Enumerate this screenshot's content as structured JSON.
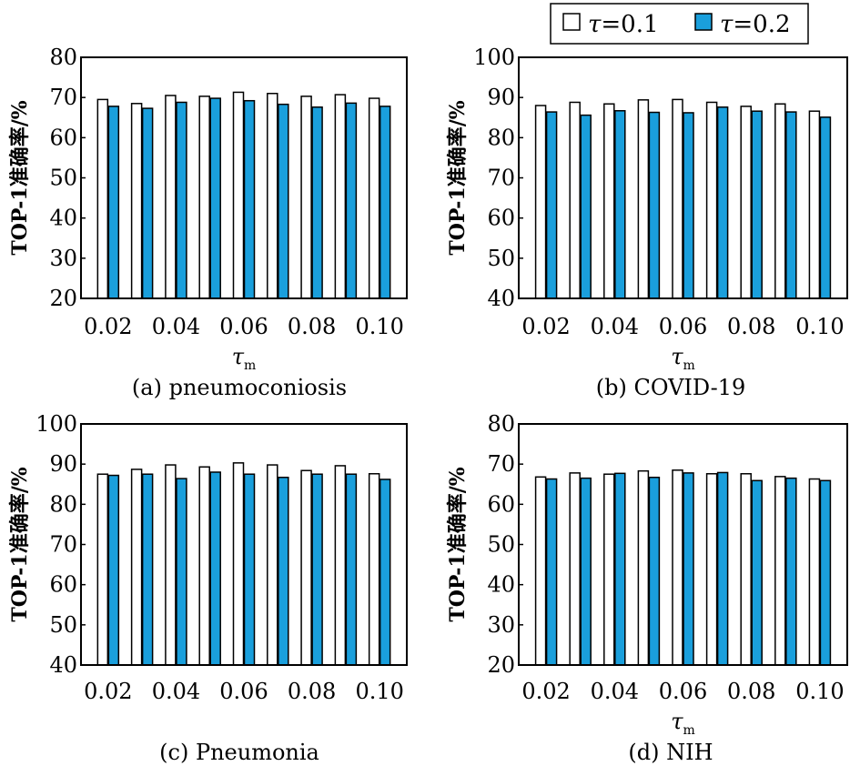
{
  "colors": {
    "series1": "#ffffff",
    "series2": "#1a9fdc",
    "stroke": "#000000"
  },
  "legend": {
    "items": [
      {
        "sym": "τ",
        "text": "=0.1"
      },
      {
        "sym": "τ",
        "text": "=0.2"
      }
    ]
  },
  "chart_data": [
    {
      "type": "bar",
      "caption": "(a) pneumoconiosis",
      "ylabel": "TOP-1准确率/%",
      "xlabel_symbol": "τ",
      "xlabel_sub": "m",
      "ylim": [
        20,
        80
      ],
      "yticks": [
        "20",
        "30",
        "40",
        "50",
        "60",
        "70",
        "80"
      ],
      "categories": [
        "0.02",
        "0.03",
        "0.04",
        "0.05",
        "0.06",
        "0.07",
        "0.08",
        "0.09",
        "0.10"
      ],
      "xtick_labels": [
        "0.02",
        "0.04",
        "0.06",
        "0.08",
        "0.10"
      ],
      "series": [
        {
          "name": "τ=0.1",
          "values": [
            69.5,
            68.5,
            70.5,
            70.3,
            71.3,
            71.0,
            70.3,
            70.7,
            69.8
          ]
        },
        {
          "name": "τ=0.2",
          "values": [
            67.8,
            67.3,
            68.8,
            69.8,
            69.2,
            68.3,
            67.6,
            68.6,
            67.8
          ]
        }
      ]
    },
    {
      "type": "bar",
      "caption": "(b) COVID-19",
      "ylabel": "TOP-1准确率/%",
      "xlabel_symbol": "τ",
      "xlabel_sub": "m",
      "ylim": [
        40,
        100
      ],
      "yticks": [
        "40",
        "50",
        "60",
        "70",
        "80",
        "90",
        "100"
      ],
      "categories": [
        "0.02",
        "0.03",
        "0.04",
        "0.05",
        "0.06",
        "0.07",
        "0.08",
        "0.09",
        "0.10"
      ],
      "xtick_labels": [
        "0.02",
        "0.04",
        "0.06",
        "0.08",
        "0.10"
      ],
      "series": [
        {
          "name": "τ=0.1",
          "values": [
            88.0,
            88.8,
            88.4,
            89.4,
            89.5,
            88.8,
            87.8,
            88.4,
            86.6
          ]
        },
        {
          "name": "τ=0.2",
          "values": [
            86.4,
            85.6,
            86.7,
            86.3,
            86.2,
            87.6,
            86.6,
            86.4,
            85.1
          ]
        }
      ]
    },
    {
      "type": "bar",
      "caption": "(c) Pneumonia",
      "ylabel": "TOP-1准确率/%",
      "xlabel_symbol": "",
      "xlabel_sub": "",
      "ylim": [
        40,
        100
      ],
      "yticks": [
        "40",
        "50",
        "60",
        "70",
        "80",
        "90",
        "100"
      ],
      "categories": [
        "0.02",
        "0.03",
        "0.04",
        "0.05",
        "0.06",
        "0.07",
        "0.08",
        "0.09",
        "0.10"
      ],
      "xtick_labels": [
        "0.02",
        "0.04",
        "0.06",
        "0.08",
        "0.10"
      ],
      "series": [
        {
          "name": "τ=0.1",
          "values": [
            87.5,
            88.7,
            89.8,
            89.3,
            90.3,
            89.8,
            88.4,
            89.6,
            87.6
          ]
        },
        {
          "name": "τ=0.2",
          "values": [
            87.2,
            87.5,
            86.4,
            88.0,
            87.5,
            86.7,
            87.5,
            87.5,
            86.2
          ]
        }
      ]
    },
    {
      "type": "bar",
      "caption": "(d) NIH",
      "ylabel": "TOP-1准确率/%",
      "xlabel_symbol": "τ",
      "xlabel_sub": "m",
      "ylim": [
        20,
        80
      ],
      "yticks": [
        "20",
        "30",
        "40",
        "50",
        "60",
        "70",
        "80"
      ],
      "categories": [
        "0.02",
        "0.03",
        "0.04",
        "0.05",
        "0.06",
        "0.07",
        "0.08",
        "0.09",
        "0.10"
      ],
      "xtick_labels": [
        "0.02",
        "0.04",
        "0.06",
        "0.08",
        "0.10"
      ],
      "series": [
        {
          "name": "τ=0.1",
          "values": [
            66.8,
            67.8,
            67.5,
            68.3,
            68.5,
            67.6,
            67.6,
            66.9,
            66.3
          ]
        },
        {
          "name": "τ=0.2",
          "values": [
            66.3,
            66.5,
            67.7,
            66.7,
            67.8,
            67.9,
            65.9,
            66.5,
            65.9
          ]
        }
      ]
    }
  ]
}
